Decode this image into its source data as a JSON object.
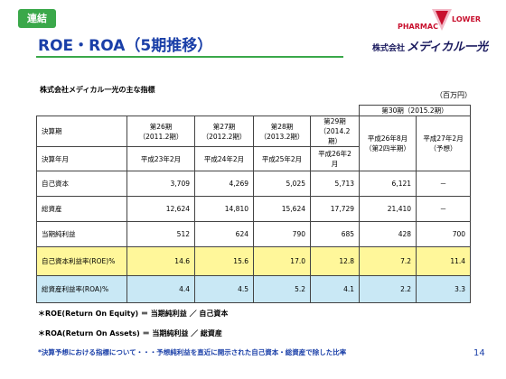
{
  "header": {
    "badge": "連結",
    "title": "ROE・ROA（5期推移）",
    "logo": {
      "brand_left": "PHARMAC",
      "brand_right": "LOWER",
      "company_prefix": "株式会社",
      "company_name": "メディカル一光"
    }
  },
  "table": {
    "caption": "株式会社メディカル一光の主な指標",
    "unit": "（百万円）",
    "group_header": "第30期（2015.2期）",
    "head_rows": [
      {
        "label": "決算期",
        "cells": [
          [
            "第26期",
            "（2011.2期）"
          ],
          [
            "第27期",
            "（2012.2期）"
          ],
          [
            "第28期",
            "（2013.2期）"
          ],
          [
            "第29期",
            "（2014.2期）"
          ],
          [
            "平成26年8月",
            "（第2四半期）"
          ],
          [
            "平成27年2月",
            "（予想）"
          ]
        ]
      },
      {
        "label": "決算年月",
        "cells": [
          "平成23年2月",
          "平成24年2月",
          "平成25年2月",
          "平成26年2月"
        ]
      }
    ],
    "rows": [
      {
        "label": "自己資本",
        "cells": [
          "3,709",
          "4,269",
          "5,025",
          "5,713",
          "6,121",
          "－"
        ]
      },
      {
        "label": "総資産",
        "cells": [
          "12,624",
          "14,810",
          "15,624",
          "17,729",
          "21,410",
          "－"
        ]
      },
      {
        "label": "当期純利益",
        "cells": [
          "512",
          "624",
          "790",
          "685",
          "428",
          "700"
        ]
      },
      {
        "label": "自己資本利益率(ROE)%",
        "cells": [
          "14.6",
          "15.6",
          "17.0",
          "12.8",
          "7.2",
          "11.4"
        ]
      },
      {
        "label": "総資産利益率(ROA)%",
        "cells": [
          "4.4",
          "4.5",
          "5.2",
          "4.1",
          "2.2",
          "3.3"
        ]
      }
    ]
  },
  "notes": [
    "＊ROE(Return On Equity) ＝ 当期純利益 ／ 自己資本",
    "＊ROA(Return On Assets) ＝ 当期純利益 ／ 総資産"
  ],
  "footnote": "*決算予想における指標について・・・予想純利益を直近に開示された自己資本・総資産で除した比率",
  "page_number": "14"
}
